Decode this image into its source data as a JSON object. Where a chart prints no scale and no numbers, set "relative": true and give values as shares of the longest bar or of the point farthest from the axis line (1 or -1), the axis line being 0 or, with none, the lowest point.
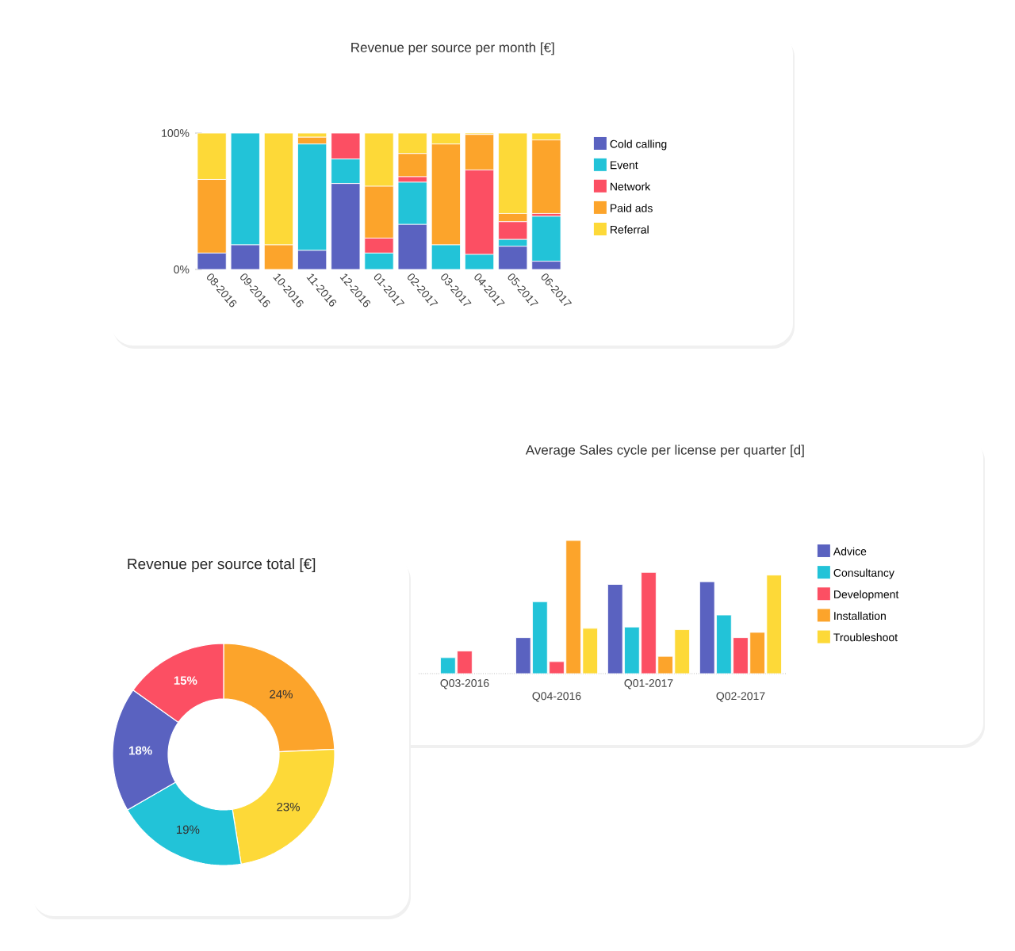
{
  "chart_data": [
    {
      "type": "bar",
      "title": "Revenue per source per month [€]",
      "stacked": true,
      "legend": "right",
      "categories": [
        "08-2016",
        "09-2016",
        "10-2016",
        "11-2016",
        "12-2016",
        "01-2017",
        "02-2017",
        "03-2017",
        "04-2017",
        "05-2017",
        "06-2017"
      ],
      "ylim": [
        0,
        100
      ],
      "yticks": [
        {
          "value": 0,
          "label": "0%"
        },
        {
          "value": 100,
          "label": "100%"
        }
      ],
      "series": [
        {
          "name": "Cold calling",
          "color": "#5a62c0",
          "values": [
            12,
            18,
            0,
            14,
            63,
            0,
            33,
            0,
            0,
            17,
            6
          ]
        },
        {
          "name": "Event",
          "color": "#22c3d8",
          "values": [
            0,
            82,
            0,
            78,
            18,
            12,
            31,
            18,
            11,
            5,
            33
          ]
        },
        {
          "name": "Network",
          "color": "#fc4f63",
          "values": [
            0,
            0,
            0,
            0,
            19,
            11,
            4,
            0,
            62,
            13,
            2
          ]
        },
        {
          "name": "Paid ads",
          "color": "#fca42b",
          "values": [
            54,
            0,
            18,
            5,
            0,
            38,
            17,
            74,
            26,
            6,
            54
          ]
        },
        {
          "name": "Referral",
          "color": "#fdd938",
          "values": [
            34,
            0,
            82,
            3,
            0,
            39,
            15,
            8,
            1,
            59,
            5
          ]
        }
      ]
    },
    {
      "type": "bar",
      "title": "Average Sales cycle per license per quarter [d]",
      "relative": true,
      "legend": "right",
      "categories": [
        "Q03-2016",
        "Q04-2016",
        "Q01-2017",
        "Q02-2017"
      ],
      "series": [
        {
          "name": "Advice",
          "color": "#5a62c0",
          "values": [
            null,
            0.27,
            0.67,
            0.69
          ]
        },
        {
          "name": "Consultancy",
          "color": "#22c3d8",
          "values": [
            0.12,
            0.54,
            0.35,
            0.44
          ]
        },
        {
          "name": "Development",
          "color": "#fc4f63",
          "values": [
            0.17,
            0.09,
            0.76,
            0.27
          ]
        },
        {
          "name": "Installation",
          "color": "#fca42b",
          "values": [
            null,
            1,
            0.13,
            0.31
          ]
        },
        {
          "name": "Troubleshoot",
          "color": "#fdd938",
          "values": [
            null,
            0.34,
            0.33,
            0.74
          ]
        }
      ]
    },
    {
      "type": "donut",
      "title": "Revenue per source total [€]",
      "categories": [
        null,
        null,
        null,
        null,
        null
      ],
      "values": [
        24,
        23,
        19,
        18,
        15
      ],
      "colors": [
        "#fca42b",
        "#fdd938",
        "#22c3d8",
        "#5a62c0",
        "#fc4f63"
      ],
      "value_labels": [
        "24%",
        "23%",
        "19%",
        "18%",
        "15%"
      ]
    }
  ]
}
